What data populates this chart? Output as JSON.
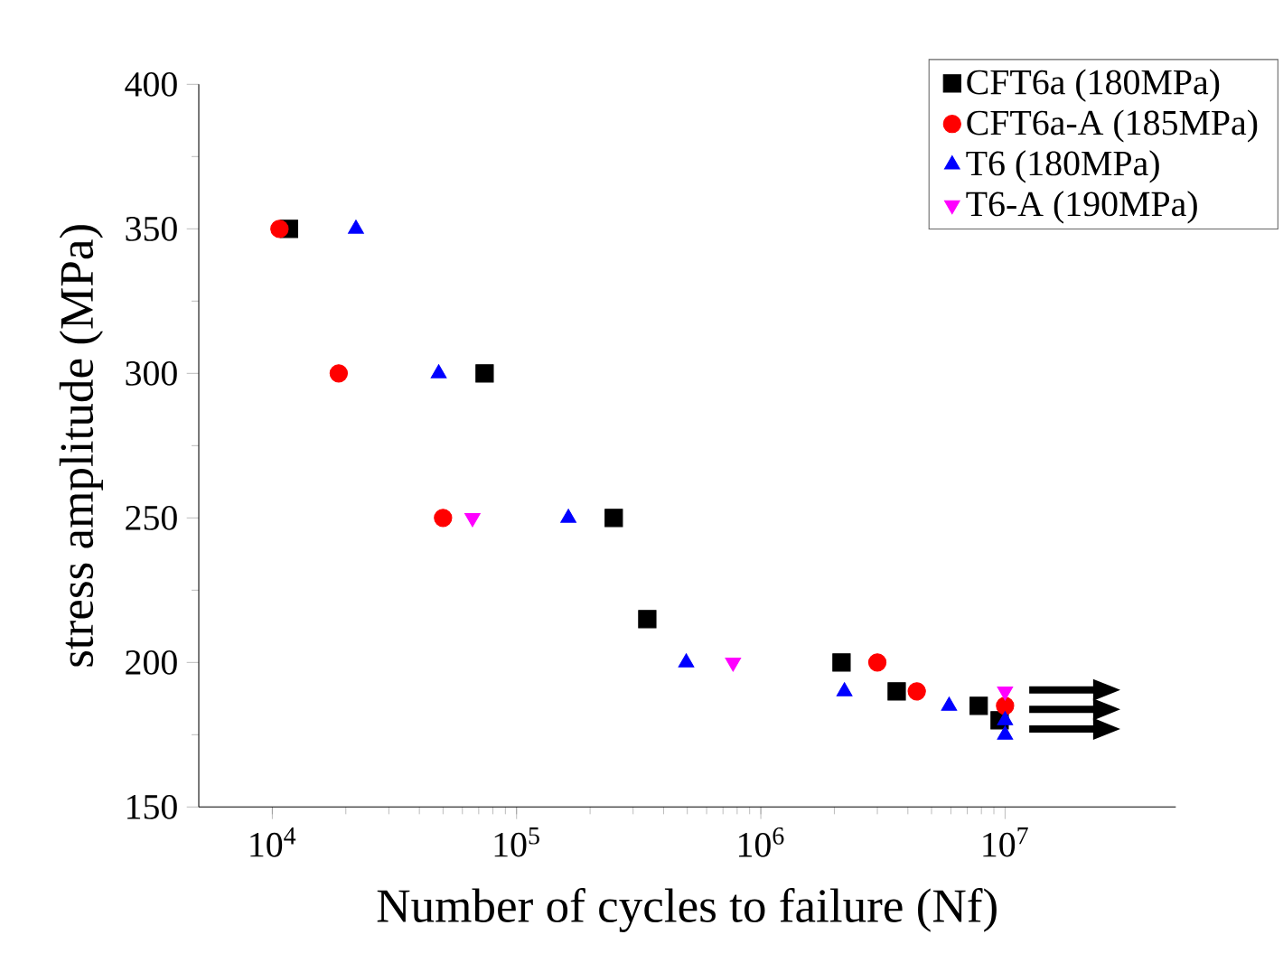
{
  "chart_data": {
    "type": "scatter",
    "xlabel": "Number of cycles to failure (Nf)",
    "ylabel": "stress amplitude (MPa)",
    "log": "x",
    "legend": "top right",
    "grid": false,
    "xlim": [
      5000,
      50000000
    ],
    "ylim": [
      150,
      400
    ],
    "xticks": [
      {
        "value": 10000,
        "label": "10$^{4}$"
      },
      {
        "value": 100000,
        "label": "10$^{5}$"
      },
      {
        "value": 1000000,
        "label": "10$^{6}$"
      },
      {
        "value": 10000000,
        "label": "10$^{7}$"
      }
    ],
    "yticks": [
      150,
      200,
      250,
      300,
      350,
      400
    ],
    "series": [
      {
        "name": "CFT6a (180MPa)",
        "color": "#000000",
        "marker": "square",
        "x": [
          11700,
          74000,
          250000,
          343000,
          2140000,
          3600000,
          7800000,
          9500000
        ],
        "values": [
          350,
          300,
          250,
          215,
          200,
          190,
          185,
          180
        ]
      },
      {
        "name": "CFT6a-A (185MPa)",
        "color": "#ff0000",
        "marker": "circle",
        "x": [
          10700,
          18700,
          50000,
          3000000,
          4350000,
          10000000
        ],
        "values": [
          350,
          300,
          250,
          200,
          190,
          185
        ]
      },
      {
        "name": "T6 (180MPa)",
        "color": "#0000ff",
        "marker": "triangle",
        "x": [
          22000,
          48000,
          163000,
          495000,
          2200000,
          5900000,
          10000000,
          10000000
        ],
        "values": [
          350,
          300,
          250,
          200,
          190,
          185,
          180,
          175
        ]
      },
      {
        "name": "T6-A (190MPa)",
        "color": "#ff00ff",
        "marker": "triangle-down",
        "x": [
          66000,
          770000,
          10000000
        ],
        "values": [
          250,
          200,
          190
        ]
      }
    ]
  }
}
